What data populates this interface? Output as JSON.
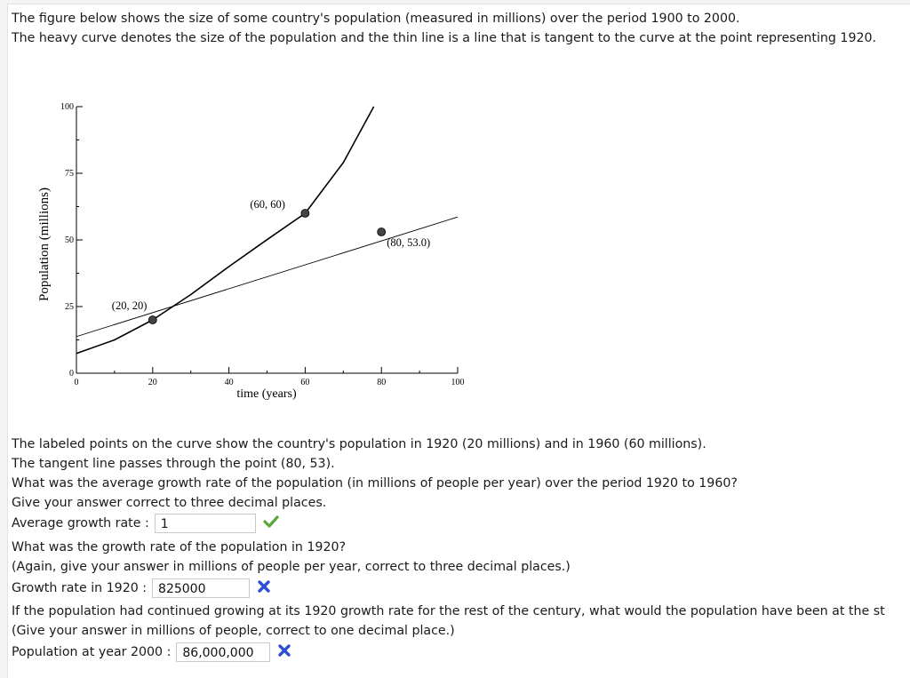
{
  "intro": {
    "line1": "The figure below shows the size of some country's population (measured in millions) over the period 1900 to 2000.",
    "line2": "The heavy curve denotes the size of the population and the thin line is a line that is tangent to the curve at the point representing 1920."
  },
  "chart_data": {
    "type": "line",
    "xlabel": "time (years)",
    "ylabel": "Population (millions)",
    "xlim": [
      0,
      100
    ],
    "ylim": [
      0,
      100
    ],
    "x_ticks": [
      0,
      20,
      40,
      60,
      80,
      100
    ],
    "y_ticks": [
      0,
      25,
      50,
      75,
      100
    ],
    "series": [
      {
        "x": [
          0,
          10,
          20,
          30,
          40,
          50,
          60,
          70,
          78
        ],
        "y": [
          7.4,
          12.5,
          20,
          29.5,
          40,
          50.1,
          60,
          79,
          100
        ]
      },
      {
        "x": [
          0,
          20,
          80,
          100
        ],
        "y": [
          13.75,
          20,
          53,
          58.6
        ]
      }
    ],
    "points": [
      {
        "x": 20,
        "y": 20,
        "label": "(20, 20)"
      },
      {
        "x": 60,
        "y": 60,
        "label": "(60, 60)"
      },
      {
        "x": 80,
        "y": 53,
        "label": "(80, 53.0)"
      }
    ]
  },
  "questions": {
    "p1": "The labeled points on the curve show the country's population in 1920 (20 millions) and in 1960 (60 millions).",
    "p2": "The tangent line passes through the point (80, 53).",
    "p3": "What was the average growth rate of the population (in millions of people per year) over the period 1920 to 1960?",
    "p4": "Give your answer correct to three decimal places.",
    "q1_label": "Average growth rate :",
    "q1_value": "1",
    "q1_status": "correct",
    "p5": "What was the growth rate of the population in 1920?",
    "p6": "(Again, give your answer in millions of people per year, correct to three decimal places.)",
    "q2_label": "Growth rate in 1920 :",
    "q2_value": "825000",
    "q2_status": "incorrect",
    "p7": "If the population had continued growing at its 1920 growth rate for the rest of the century, what would the population have been at the st",
    "p8": "(Give your answer in millions of people, correct to one decimal place.)",
    "q3_label": "Population at year 2000 :",
    "q3_value": "86,000,000",
    "q3_status": "incorrect"
  },
  "colors": {
    "correct": "#5aa83a",
    "incorrect": "#2b4fd6"
  },
  "icons": {
    "correct": "check-icon",
    "incorrect": "cross-icon"
  }
}
